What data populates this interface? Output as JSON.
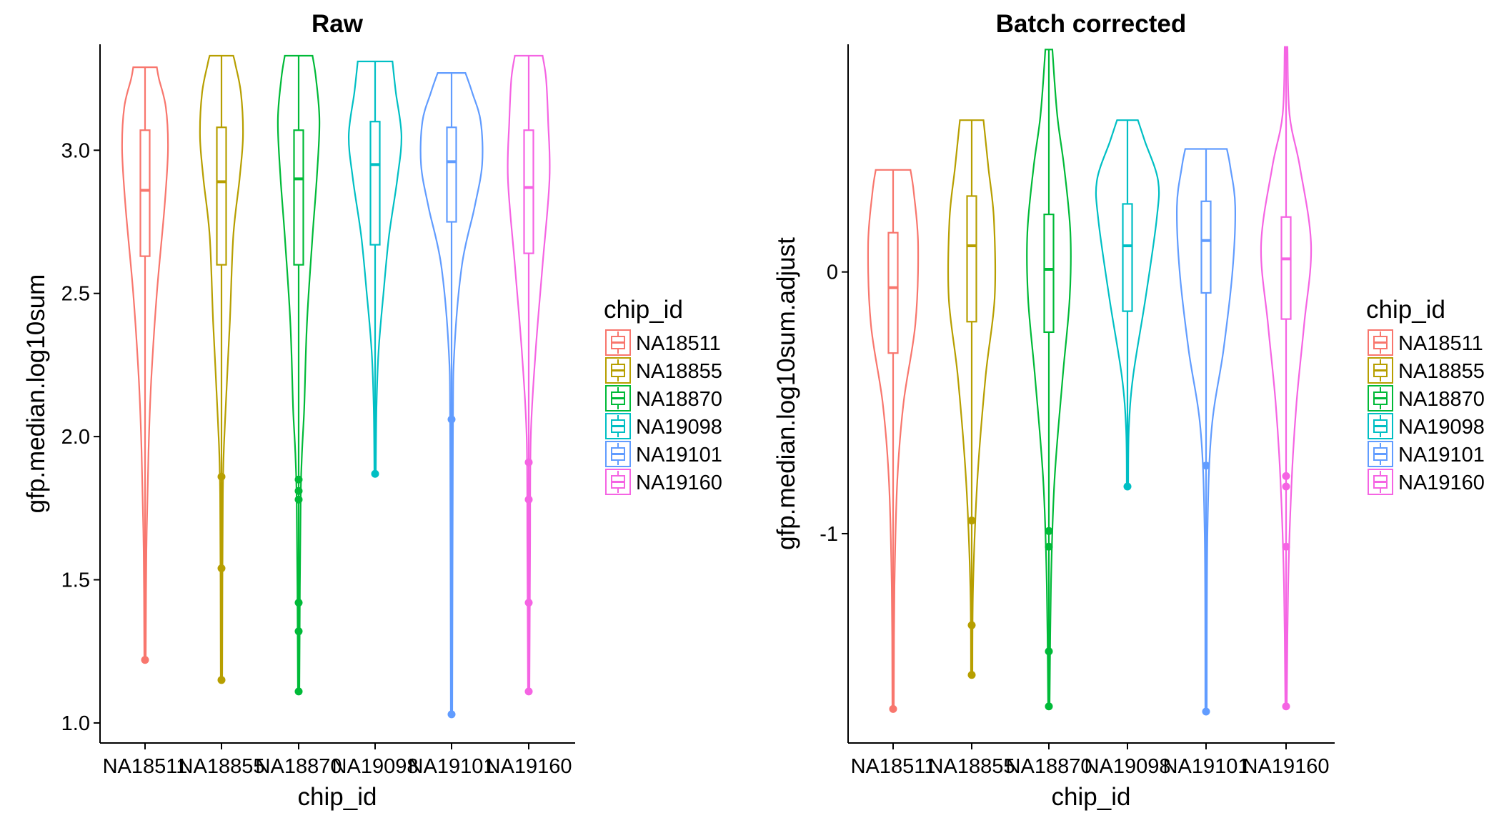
{
  "chart_data": [
    {
      "type": "violin",
      "title": "Raw",
      "xlabel": "chip_id",
      "ylabel": "gfp.median.log10sum",
      "ylim": [
        0.93,
        3.37
      ],
      "yticks": [
        1.0,
        1.5,
        2.0,
        2.5,
        3.0
      ],
      "ytick_labels": [
        "1.0",
        "1.5",
        "2.0",
        "2.5",
        "3.0"
      ],
      "categories": [
        "NA18511",
        "NA18855",
        "NA18870",
        "NA19098",
        "NA19101",
        "NA19160"
      ],
      "series": [
        {
          "name": "NA18511",
          "min": 1.22,
          "max": 3.29,
          "q1": 2.63,
          "median": 2.86,
          "q3": 3.07,
          "profile": [
            [
              1.22,
              0.01
            ],
            [
              1.6,
              0.02
            ],
            [
              1.95,
              0.05
            ],
            [
              2.2,
              0.09
            ],
            [
              2.5,
              0.17
            ],
            [
              2.8,
              0.28
            ],
            [
              3.0,
              0.33
            ],
            [
              3.15,
              0.3
            ],
            [
              3.25,
              0.2
            ],
            [
              3.29,
              0.17
            ]
          ],
          "outliers": [
            1.22
          ]
        },
        {
          "name": "NA18855",
          "min": 1.15,
          "max": 3.33,
          "q1": 2.6,
          "median": 2.89,
          "q3": 3.08,
          "profile": [
            [
              1.15,
              0.01
            ],
            [
              1.8,
              0.02
            ],
            [
              2.05,
              0.05
            ],
            [
              2.4,
              0.12
            ],
            [
              2.7,
              0.17
            ],
            [
              2.9,
              0.26
            ],
            [
              3.05,
              0.31
            ],
            [
              3.2,
              0.28
            ],
            [
              3.3,
              0.2
            ],
            [
              3.33,
              0.17
            ]
          ],
          "outliers": [
            1.15,
            1.54,
            1.86
          ]
        },
        {
          "name": "NA18870",
          "min": 1.11,
          "max": 3.33,
          "q1": 2.6,
          "median": 2.9,
          "q3": 3.07,
          "profile": [
            [
              1.11,
              0.01
            ],
            [
              1.8,
              0.03
            ],
            [
              2.1,
              0.08
            ],
            [
              2.4,
              0.12
            ],
            [
              2.7,
              0.2
            ],
            [
              2.9,
              0.26
            ],
            [
              3.1,
              0.3
            ],
            [
              3.25,
              0.25
            ],
            [
              3.33,
              0.2
            ]
          ],
          "outliers": [
            1.11,
            1.32,
            1.42,
            1.78,
            1.81,
            1.85
          ]
        },
        {
          "name": "NA19098",
          "min": 1.87,
          "max": 3.31,
          "q1": 2.67,
          "median": 2.95,
          "q3": 3.1,
          "profile": [
            [
              1.87,
              0.01
            ],
            [
              2.1,
              0.02
            ],
            [
              2.3,
              0.05
            ],
            [
              2.5,
              0.12
            ],
            [
              2.7,
              0.2
            ],
            [
              2.9,
              0.32
            ],
            [
              3.05,
              0.38
            ],
            [
              3.2,
              0.3
            ],
            [
              3.31,
              0.25
            ]
          ],
          "outliers": [
            1.87
          ]
        },
        {
          "name": "NA19101",
          "min": 1.03,
          "max": 3.27,
          "q1": 2.75,
          "median": 2.96,
          "q3": 3.08,
          "profile": [
            [
              1.03,
              0.01
            ],
            [
              2.0,
              0.02
            ],
            [
              2.3,
              0.04
            ],
            [
              2.6,
              0.15
            ],
            [
              2.8,
              0.33
            ],
            [
              2.95,
              0.44
            ],
            [
              3.1,
              0.42
            ],
            [
              3.2,
              0.3
            ],
            [
              3.27,
              0.2
            ]
          ],
          "outliers": [
            1.03,
            2.06
          ]
        },
        {
          "name": "NA19160",
          "min": 1.11,
          "max": 3.33,
          "q1": 2.64,
          "median": 2.87,
          "q3": 3.07,
          "profile": [
            [
              1.11,
              0.01
            ],
            [
              1.6,
              0.02
            ],
            [
              2.0,
              0.03
            ],
            [
              2.3,
              0.1
            ],
            [
              2.6,
              0.2
            ],
            [
              2.9,
              0.3
            ],
            [
              3.1,
              0.28
            ],
            [
              3.25,
              0.25
            ],
            [
              3.33,
              0.2
            ]
          ],
          "outliers": [
            1.11,
            1.42,
            1.78,
            1.91
          ]
        }
      ]
    },
    {
      "type": "violin",
      "title": "Batch corrected",
      "xlabel": "chip_id",
      "ylabel": "gfp.median.log10sum.adjust",
      "ylim": [
        -1.8,
        0.87
      ],
      "yticks": [
        -1,
        0
      ],
      "ytick_labels": [
        "-1",
        "0"
      ],
      "categories": [
        "NA18511",
        "NA18855",
        "NA18870",
        "NA19098",
        "NA19101",
        "NA19160"
      ],
      "series": [
        {
          "name": "NA18511",
          "min": -1.67,
          "max": 0.39,
          "q1": -0.31,
          "median": -0.06,
          "q3": 0.15,
          "profile": [
            [
              -1.67,
              0.01
            ],
            [
              -1.2,
              0.02
            ],
            [
              -0.8,
              0.06
            ],
            [
              -0.5,
              0.15
            ],
            [
              -0.2,
              0.32
            ],
            [
              0.1,
              0.36
            ],
            [
              0.3,
              0.3
            ],
            [
              0.39,
              0.25
            ]
          ],
          "outliers": [
            -1.67
          ]
        },
        {
          "name": "NA18855",
          "min": -1.54,
          "max": 0.58,
          "q1": -0.19,
          "median": 0.1,
          "q3": 0.29,
          "profile": [
            [
              -1.54,
              0.01
            ],
            [
              -1.2,
              0.02
            ],
            [
              -0.8,
              0.08
            ],
            [
              -0.4,
              0.2
            ],
            [
              -0.1,
              0.33
            ],
            [
              0.2,
              0.32
            ],
            [
              0.4,
              0.24
            ],
            [
              0.58,
              0.17
            ]
          ],
          "outliers": [
            -1.54,
            -1.35,
            -0.95
          ]
        },
        {
          "name": "NA18870",
          "min": -1.66,
          "max": 0.85,
          "q1": -0.23,
          "median": 0.01,
          "q3": 0.22,
          "profile": [
            [
              -1.66,
              0.01
            ],
            [
              -1.2,
              0.03
            ],
            [
              -0.8,
              0.08
            ],
            [
              -0.4,
              0.2
            ],
            [
              -0.1,
              0.3
            ],
            [
              0.15,
              0.31
            ],
            [
              0.4,
              0.22
            ],
            [
              0.6,
              0.12
            ],
            [
              0.85,
              0.05
            ]
          ],
          "outliers": [
            -1.66,
            -1.45,
            -1.05,
            -0.99
          ]
        },
        {
          "name": "NA19098",
          "min": -0.82,
          "max": 0.58,
          "q1": -0.15,
          "median": 0.1,
          "q3": 0.26,
          "profile": [
            [
              -0.82,
              0.01
            ],
            [
              -0.6,
              0.02
            ],
            [
              -0.4,
              0.08
            ],
            [
              -0.1,
              0.26
            ],
            [
              0.2,
              0.42
            ],
            [
              0.35,
              0.44
            ],
            [
              0.5,
              0.25
            ],
            [
              0.58,
              0.15
            ]
          ],
          "outliers": [
            -0.82
          ]
        },
        {
          "name": "NA19101",
          "min": -1.68,
          "max": 0.47,
          "q1": -0.08,
          "median": 0.12,
          "q3": 0.27,
          "profile": [
            [
              -1.68,
              0.01
            ],
            [
              -1.0,
              0.02
            ],
            [
              -0.6,
              0.08
            ],
            [
              -0.3,
              0.25
            ],
            [
              0.0,
              0.38
            ],
            [
              0.25,
              0.42
            ],
            [
              0.4,
              0.35
            ],
            [
              0.47,
              0.3
            ]
          ],
          "outliers": [
            -1.68,
            -0.74
          ]
        },
        {
          "name": "NA19160",
          "min": -1.66,
          "max": 0.86,
          "q1": -0.18,
          "median": 0.05,
          "q3": 0.21,
          "profile": [
            [
              -1.66,
              0.01
            ],
            [
              -1.2,
              0.03
            ],
            [
              -0.8,
              0.08
            ],
            [
              -0.5,
              0.15
            ],
            [
              -0.2,
              0.26
            ],
            [
              0.1,
              0.36
            ],
            [
              0.4,
              0.2
            ],
            [
              0.6,
              0.05
            ],
            [
              0.86,
              0.02
            ]
          ],
          "outliers": [
            -1.66,
            -1.05,
            -0.82,
            -0.78
          ]
        }
      ]
    }
  ],
  "legend": {
    "title": "chip_id",
    "items": [
      "NA18511",
      "NA18855",
      "NA18870",
      "NA19098",
      "NA19101",
      "NA19160"
    ]
  },
  "colors": {
    "NA18511": "#F8766D",
    "NA18855": "#B79F00",
    "NA18870": "#00BA38",
    "NA19098": "#00BFC4",
    "NA19101": "#619CFF",
    "NA19160": "#F564E3"
  }
}
